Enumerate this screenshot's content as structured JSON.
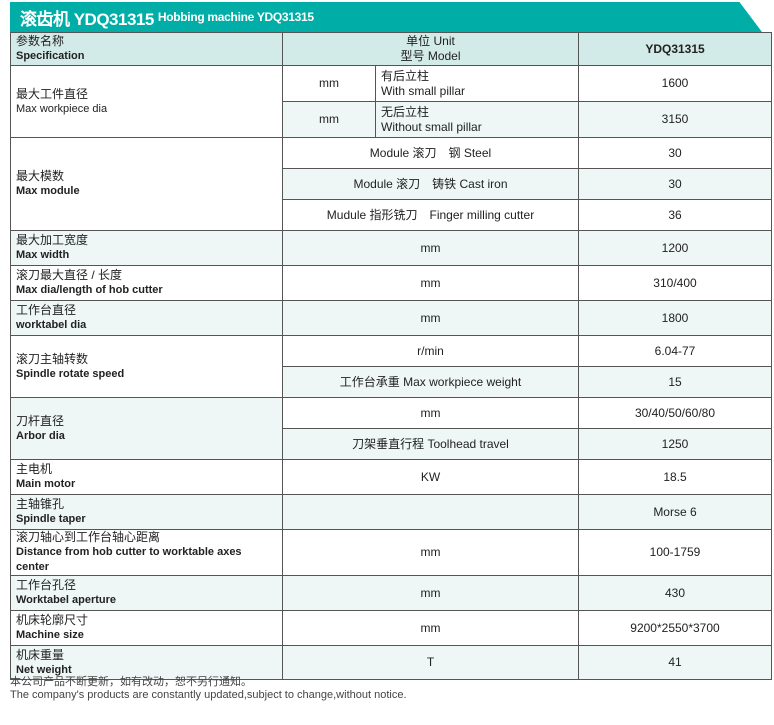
{
  "title": {
    "zh": "滚齿机 YDQ31315",
    "en": "Hobbing machine YDQ31315"
  },
  "header": {
    "spec_zh": "参数名称",
    "spec_en": "Specification",
    "unit_zh": "单位 Unit",
    "model_zh": "型号 Model",
    "model": "YDQ31315"
  },
  "rows": {
    "workpiece": {
      "zh": "最大工件直径",
      "en": "Max workpiece dia",
      "sub": [
        {
          "unit": "mm",
          "note_zh": "有后立柱",
          "note_en": "With small pillar",
          "value": "1600"
        },
        {
          "unit": "mm",
          "note_zh": "无后立柱",
          "note_en": "Without small pillar",
          "value": "3150"
        }
      ]
    },
    "module": {
      "zh": "最大模数",
      "en": "Max module",
      "sub": [
        {
          "unit": "Module 滚刀　钢 Steel",
          "value": "30"
        },
        {
          "unit": "Module 滚刀　铸铁 Cast iron",
          "value": "30"
        },
        {
          "unit": "Mudule 指形铣刀　Finger milling cutter",
          "value": "36"
        }
      ]
    },
    "width": {
      "zh": "最大加工宽度",
      "en": "Max width",
      "unit": "mm",
      "value": "1200"
    },
    "hob": {
      "zh": "滚刀最大直径 / 长度",
      "en": "Max dia/length of hob cutter",
      "unit": "mm",
      "value": "310/400"
    },
    "table": {
      "zh": "工作台直径",
      "en": "worktabel dia",
      "unit": "mm",
      "value": "1800"
    },
    "spindle": {
      "zh": "滚刀主轴转数",
      "en": "Spindle rotate speed",
      "sub": [
        {
          "unit": "r/min",
          "value": "6.04-77"
        },
        {
          "unit": "工作台承重 Max workpiece weight",
          "value": "15"
        }
      ]
    },
    "arbor": {
      "zh": "刀杆直径",
      "en": "Arbor dia",
      "sub": [
        {
          "unit": "mm",
          "value": "30/40/50/60/80"
        },
        {
          "unit": "刀架垂直行程 Toolhead travel",
          "value": "1250"
        }
      ]
    },
    "motor": {
      "zh": "主电机",
      "en": "Main motor",
      "unit": "KW",
      "value": "18.5"
    },
    "taper": {
      "zh": "主轴锥孔",
      "en": "Spindle taper",
      "unit": "",
      "value": "Morse 6"
    },
    "distance": {
      "zh": "滚刀轴心到工作台轴心距离",
      "en": "Distance from hob cutter to worktable axes center",
      "unit": "mm",
      "value": "100-1759"
    },
    "aperture": {
      "zh": "工作台孔径",
      "en": "Worktabel aperture",
      "unit": "mm",
      "value": "430"
    },
    "size": {
      "zh": "机床轮廓尺寸",
      "en": "Machine size",
      "unit": "mm",
      "value": "9200*2550*3700"
    },
    "weight": {
      "zh": "机床重量",
      "en": "Net weight",
      "unit": "T",
      "value": "41"
    }
  },
  "footer": {
    "zh": "本公司产品不断更新，如有改动，恕不另行通知。",
    "en": "The company's products are constantly updated,subject to change,without notice."
  },
  "colors": {
    "title_bar": "#00aea7",
    "header_bg": "#d3ebe8",
    "row_tint": "#eef7f6"
  }
}
